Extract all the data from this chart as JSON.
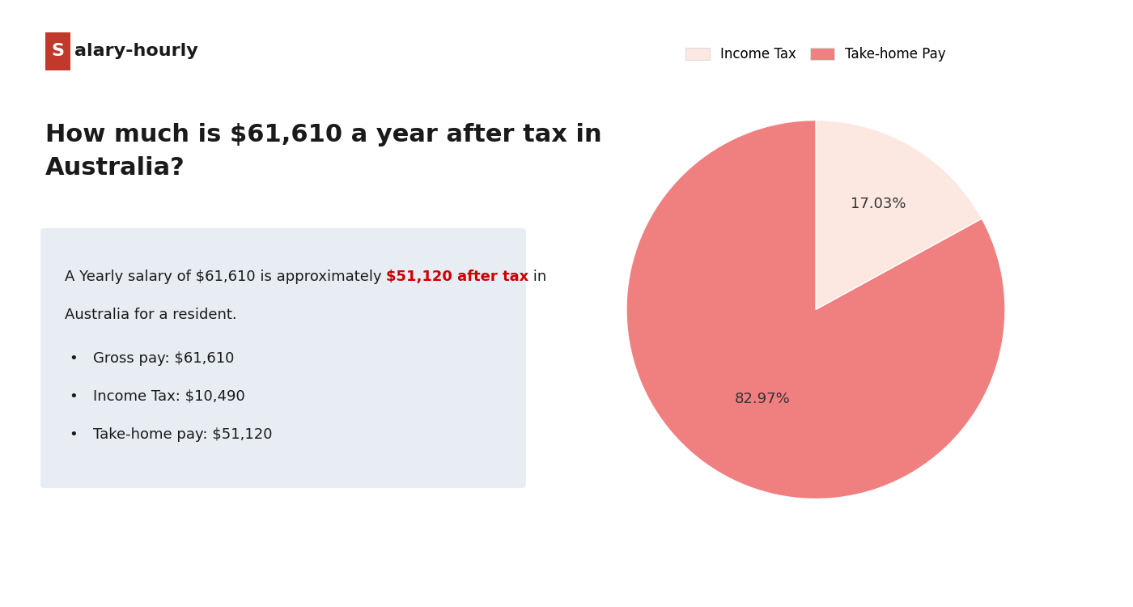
{
  "white_bg": "#ffffff",
  "page_bg": "#f5f5f5",
  "logo_s_bg": "#c0392b",
  "logo_s_color": "#ffffff",
  "logo_rest_color": "#1a1a1a",
  "heading": "How much is $61,610 a year after tax in\nAustralia?",
  "heading_color": "#1a1a1a",
  "heading_fontsize": 22,
  "info_box_bg": "#e8edf3",
  "info_line1_normal": "A Yearly salary of $61,610 is approximately ",
  "info_line1_highlight": "$51,120 after tax",
  "info_line1_end": " in",
  "info_line2": "Australia for a resident.",
  "highlight_color": "#cc0000",
  "bullet_items": [
    "Gross pay: $61,610",
    "Income Tax: $10,490",
    "Take-home pay: $51,120"
  ],
  "bullet_color": "#1a1a1a",
  "text_fontsize": 13,
  "pie_values": [
    17.03,
    82.97
  ],
  "pie_colors": [
    "#fce8e0",
    "#f08080"
  ],
  "pie_pct_labels": [
    "17.03%",
    "82.97%"
  ],
  "legend_labels": [
    "Income Tax",
    "Take-home Pay"
  ],
  "pct_fontsize": 13,
  "legend_fontsize": 12
}
